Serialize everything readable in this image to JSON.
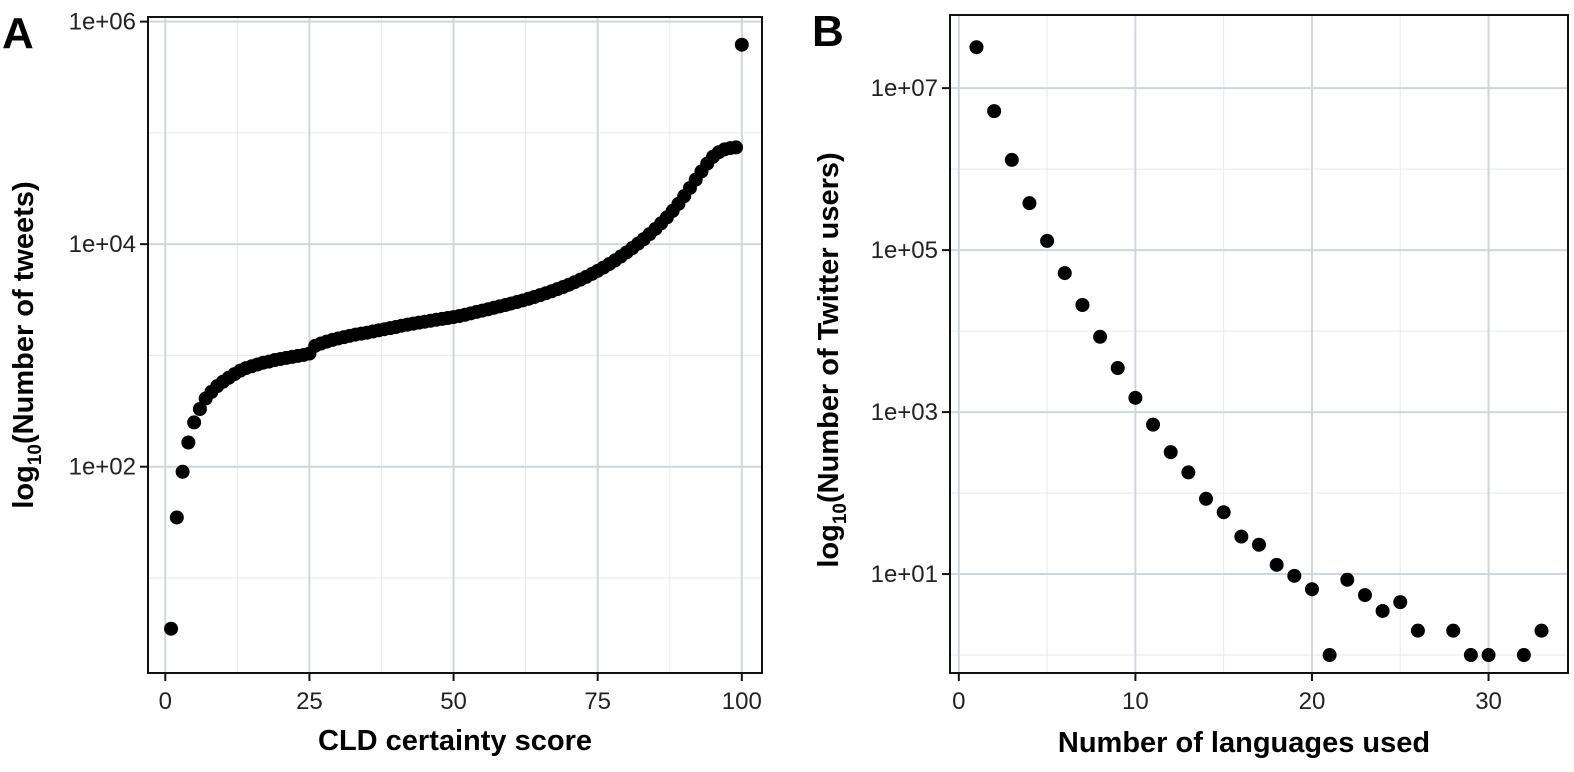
{
  "chart_data": [
    {
      "panel_label": "A",
      "type": "scatter",
      "xlabel": "CLD certainty score",
      "ylabel": {
        "prefix": "log",
        "subscript": "10",
        "text": "(Number of tweets)"
      },
      "y_scale": "log10",
      "xlim": [
        -3,
        103.5
      ],
      "ylim": [
        1.4,
        1100000
      ],
      "x_ticks": [
        0,
        25,
        50,
        75,
        100
      ],
      "y_ticks": [
        100,
        10000,
        1000000
      ],
      "y_tick_labels": [
        "1e+02",
        "1e+04",
        "1e+06"
      ],
      "grid": true,
      "x": [
        1,
        2,
        3,
        4,
        5,
        6,
        7,
        8,
        9,
        10,
        11,
        12,
        13,
        14,
        15,
        16,
        17,
        18,
        19,
        20,
        21,
        22,
        23,
        24,
        25,
        26,
        27,
        28,
        29,
        30,
        31,
        32,
        33,
        34,
        35,
        36,
        37,
        38,
        39,
        40,
        41,
        42,
        43,
        44,
        45,
        46,
        47,
        48,
        49,
        50,
        51,
        52,
        53,
        54,
        55,
        56,
        57,
        58,
        59,
        60,
        61,
        62,
        63,
        64,
        65,
        66,
        67,
        68,
        69,
        70,
        71,
        72,
        73,
        74,
        75,
        76,
        77,
        78,
        79,
        80,
        81,
        82,
        83,
        84,
        85,
        86,
        87,
        88,
        89,
        90,
        91,
        92,
        93,
        94,
        95,
        96,
        97,
        98,
        99,
        100
      ],
      "y": [
        3.5,
        35,
        90,
        165,
        250,
        330,
        410,
        470,
        530,
        580,
        630,
        680,
        730,
        770,
        800,
        830,
        860,
        880,
        910,
        930,
        950,
        970,
        990,
        1010,
        1040,
        1220,
        1280,
        1330,
        1380,
        1420,
        1460,
        1500,
        1540,
        1570,
        1600,
        1640,
        1680,
        1720,
        1760,
        1800,
        1850,
        1890,
        1930,
        1970,
        2010,
        2050,
        2090,
        2130,
        2170,
        2210,
        2260,
        2320,
        2390,
        2460,
        2530,
        2600,
        2680,
        2760,
        2840,
        2930,
        3020,
        3120,
        3230,
        3350,
        3480,
        3620,
        3770,
        3940,
        4120,
        4320,
        4550,
        4800,
        5080,
        5400,
        5760,
        6160,
        6620,
        7140,
        7740,
        8420,
        9200,
        10100,
        11100,
        12300,
        13700,
        15400,
        17400,
        19900,
        23000,
        27000,
        32000,
        38000,
        45000,
        53000,
        61000,
        67000,
        71000,
        73000,
        74000,
        620000
      ]
    },
    {
      "panel_label": "B",
      "type": "scatter",
      "xlabel": "Number of languages used",
      "ylabel": {
        "prefix": "log",
        "subscript": "10",
        "text": "(Number of Twitter users)"
      },
      "y_scale": "log10",
      "xlim": [
        -0.5,
        34.5
      ],
      "ylim": [
        0.6,
        80000000
      ],
      "x_ticks": [
        0,
        10,
        20,
        30
      ],
      "y_ticks": [
        10,
        1000,
        100000,
        10000000
      ],
      "y_tick_labels": [
        "1e+01",
        "1e+03",
        "1e+05",
        "1e+07"
      ],
      "grid": true,
      "x": [
        1,
        2,
        3,
        4,
        5,
        6,
        7,
        8,
        9,
        10,
        11,
        12,
        13,
        14,
        15,
        16,
        17,
        18,
        19,
        20,
        21,
        22,
        23,
        24,
        25,
        26,
        28,
        29,
        30,
        32,
        33
      ],
      "y": [
        32000000,
        5200000,
        1300000,
        380000,
        130000,
        52000,
        21000,
        8500,
        3500,
        1500,
        700,
        320,
        180,
        85,
        58,
        29,
        23,
        13,
        9.5,
        6.5,
        1,
        8.5,
        5.5,
        3.5,
        4.5,
        2,
        2,
        1,
        1,
        1,
        2
      ]
    }
  ]
}
